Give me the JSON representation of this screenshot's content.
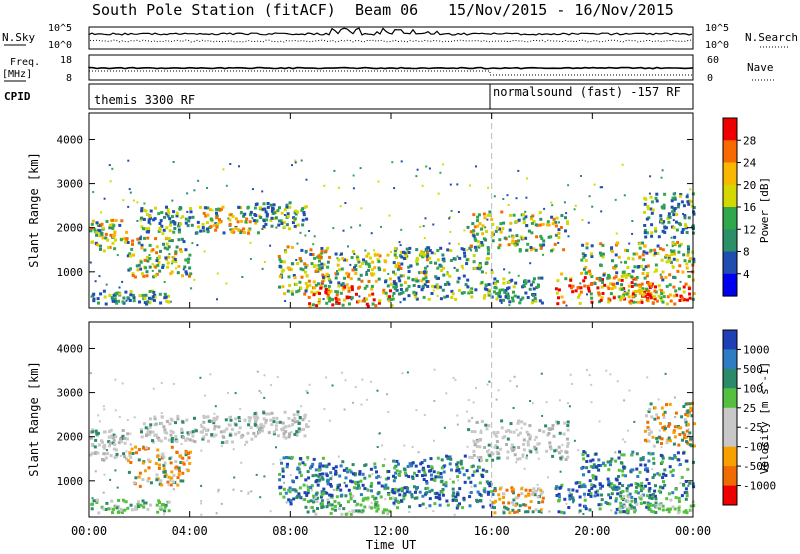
{
  "title": {
    "station": "South Pole Station (fitACF)",
    "beam": "Beam 06",
    "dates": "15/Nov/2015 - 16/Nov/2015"
  },
  "strips": {
    "nsky_label": "N.Sky",
    "nsky_ticks": [
      "10^5",
      "10^0"
    ],
    "nsearch_label": "N.Search",
    "nsearch_ticks": [
      "10^5",
      "10^0"
    ],
    "freq_label": "Freq.",
    "freq_unit": "[MHz]",
    "freq_ticks": [
      "18",
      "8"
    ],
    "nave_label": "Nave",
    "nave_ticks": [
      "60",
      "0"
    ],
    "cpid_label": "CPID",
    "cpid_segments": [
      {
        "label": "themis 3300 RF",
        "start": 0
      },
      {
        "label": "normalsound (fast) -157 RF",
        "start": 16
      }
    ]
  },
  "colorbars": {
    "power": {
      "label": "Power [dB]",
      "ticks": [
        "28",
        "24",
        "20",
        "16",
        "12",
        "8",
        "4"
      ],
      "colors": [
        "#ee0000",
        "#f86a00",
        "#f8b800",
        "#d4d800",
        "#2ea84a",
        "#2d8f6a",
        "#1f4db0",
        "#0000ee"
      ]
    },
    "velocity": {
      "label": "Velocity [m s^-1]",
      "ticks": [
        "1000",
        "500",
        "100",
        "25",
        "-25",
        "-100",
        "-500",
        "-1000"
      ],
      "colors": [
        "#1f3fb5",
        "#2e7cc4",
        "#2b8a6a",
        "#55c040",
        "#c8c8c8",
        "#c8c8c8",
        "#f8a000",
        "#f06c00",
        "#ee0000"
      ]
    }
  },
  "chart_data": [
    {
      "type": "heatmap",
      "quantity": "Power",
      "ylabel": "Slant Range [km]",
      "yticks": [
        1000,
        2000,
        3000,
        4000
      ],
      "ylim": [
        180,
        4600
      ],
      "xlim": [
        0,
        24
      ],
      "xticks": [
        "00:00",
        "04:00",
        "08:00",
        "12:00",
        "16:00",
        "20:00",
        "00:00"
      ],
      "cpid_change_hour": 16,
      "regions": [
        {
          "t": [
            0.0,
            1.5
          ],
          "r": [
            1500,
            2200
          ],
          "cls": "mid"
        },
        {
          "t": [
            0.0,
            3.2
          ],
          "r": [
            300,
            600
          ],
          "cls": "low"
        },
        {
          "t": [
            1.5,
            4.0
          ],
          "r": [
            900,
            1800
          ],
          "cls": "mid"
        },
        {
          "t": [
            2.0,
            4.5
          ],
          "r": [
            1900,
            2500
          ],
          "cls": "low"
        },
        {
          "t": [
            4.5,
            6.8
          ],
          "r": [
            1900,
            2500
          ],
          "cls": "mid"
        },
        {
          "t": [
            6.5,
            8.6
          ],
          "r": [
            2000,
            2600
          ],
          "cls": "low"
        },
        {
          "t": [
            7.5,
            9.5
          ],
          "r": [
            500,
            1600
          ],
          "cls": "mid"
        },
        {
          "t": [
            8.5,
            12.0
          ],
          "r": [
            250,
            700
          ],
          "cls": "hot"
        },
        {
          "t": [
            9.0,
            13.5
          ],
          "r": [
            700,
            1500
          ],
          "cls": "mid"
        },
        {
          "t": [
            12.0,
            16.0
          ],
          "r": [
            400,
            1600
          ],
          "cls": "low"
        },
        {
          "t": [
            15.0,
            19.0
          ],
          "r": [
            1500,
            2400
          ],
          "cls": "mid"
        },
        {
          "t": [
            16.0,
            18.0
          ],
          "r": [
            300,
            900
          ],
          "cls": "low"
        },
        {
          "t": [
            18.5,
            22.5
          ],
          "r": [
            300,
            1000
          ],
          "cls": "hot"
        },
        {
          "t": [
            19.5,
            24.0
          ],
          "r": [
            700,
            1700
          ],
          "cls": "mid"
        },
        {
          "t": [
            21.0,
            24.0
          ],
          "r": [
            300,
            700
          ],
          "cls": "warm"
        },
        {
          "t": [
            22.0,
            24.0
          ],
          "r": [
            1800,
            2800
          ],
          "cls": "low"
        }
      ]
    },
    {
      "type": "heatmap",
      "quantity": "Velocity",
      "ylabel": "Slant Range [km]",
      "xlabel": "Time UT",
      "yticks": [
        1000,
        2000,
        3000,
        4000
      ],
      "ylim": [
        180,
        4600
      ],
      "xlim": [
        0,
        24
      ],
      "xticks": [
        "00:00",
        "04:00",
        "08:00",
        "12:00",
        "16:00",
        "20:00",
        "00:00"
      ],
      "cpid_change_hour": 16,
      "regions": [
        {
          "t": [
            0.0,
            1.5
          ],
          "r": [
            1500,
            2200
          ],
          "cls": "gray"
        },
        {
          "t": [
            0.0,
            3.2
          ],
          "r": [
            300,
            600
          ],
          "cls": "green"
        },
        {
          "t": [
            1.5,
            4.0
          ],
          "r": [
            900,
            1800
          ],
          "cls": "orange"
        },
        {
          "t": [
            2.0,
            4.5
          ],
          "r": [
            1900,
            2500
          ],
          "cls": "gray"
        },
        {
          "t": [
            4.5,
            6.8
          ],
          "r": [
            1900,
            2500
          ],
          "cls": "gray"
        },
        {
          "t": [
            6.5,
            8.6
          ],
          "r": [
            2000,
            2600
          ],
          "cls": "gray"
        },
        {
          "t": [
            7.5,
            9.5
          ],
          "r": [
            500,
            1600
          ],
          "cls": "blue"
        },
        {
          "t": [
            8.5,
            12.0
          ],
          "r": [
            250,
            700
          ],
          "cls": "green"
        },
        {
          "t": [
            9.0,
            13.5
          ],
          "r": [
            700,
            1500
          ],
          "cls": "blue"
        },
        {
          "t": [
            12.0,
            16.0
          ],
          "r": [
            400,
            1600
          ],
          "cls": "blue"
        },
        {
          "t": [
            15.0,
            19.0
          ],
          "r": [
            1500,
            2400
          ],
          "cls": "gray"
        },
        {
          "t": [
            16.0,
            18.0
          ],
          "r": [
            300,
            900
          ],
          "cls": "orange"
        },
        {
          "t": [
            18.5,
            22.5
          ],
          "r": [
            300,
            1000
          ],
          "cls": "blue"
        },
        {
          "t": [
            19.5,
            24.0
          ],
          "r": [
            700,
            1700
          ],
          "cls": "blue"
        },
        {
          "t": [
            21.0,
            24.0
          ],
          "r": [
            300,
            700
          ],
          "cls": "green"
        },
        {
          "t": [
            22.0,
            24.0
          ],
          "r": [
            1800,
            2800
          ],
          "cls": "orange"
        }
      ]
    }
  ]
}
